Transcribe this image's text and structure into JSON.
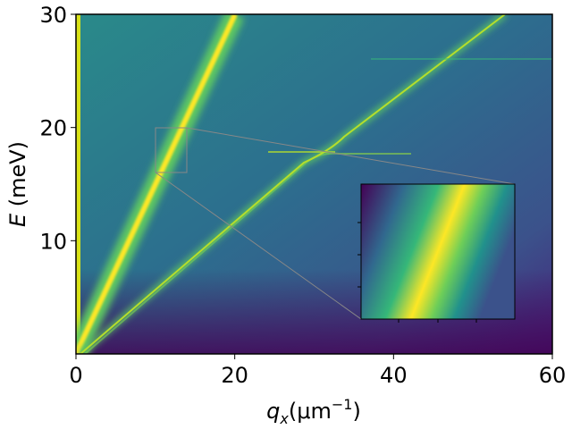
{
  "chart_data": {
    "type": "heatmap",
    "xlabel": [
      "q",
      "x",
      "(μm",
      "−1",
      ")"
    ],
    "ylabel": [
      "E",
      " (meV)"
    ],
    "xlim": [
      0,
      60
    ],
    "ylim": [
      0,
      30
    ],
    "xticks": [
      0,
      20,
      40,
      60
    ],
    "yticks": [
      10,
      20,
      30
    ]
  }
}
